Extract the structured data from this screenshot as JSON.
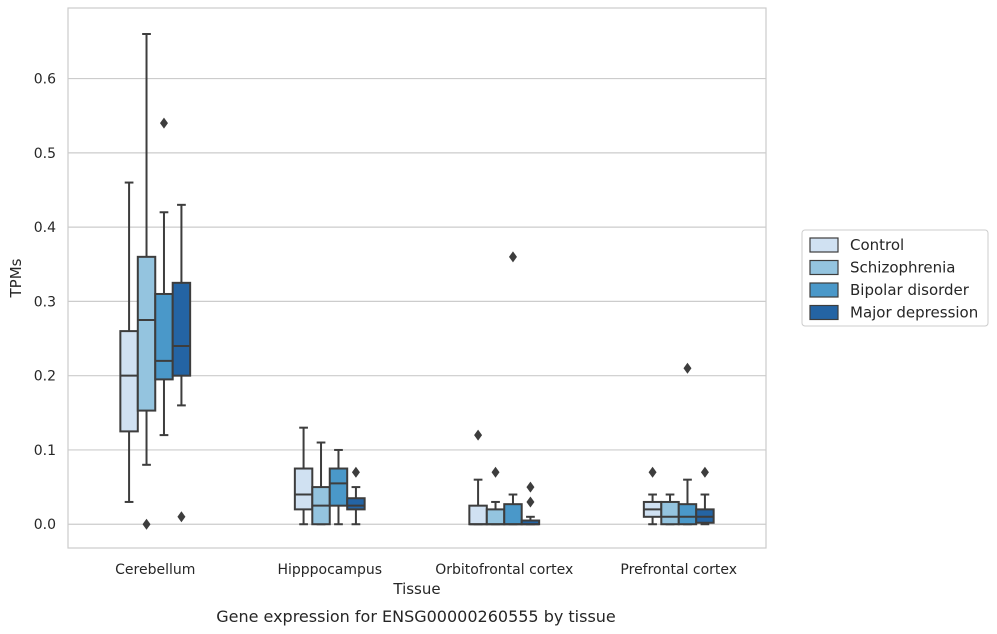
{
  "caption": "Gene expression for ENSG00000260555 by tissue",
  "chart_data": {
    "type": "box",
    "xlabel": "Tissue",
    "ylabel": "TPMs",
    "ylim": [
      -0.032,
      0.695
    ],
    "yticks": [
      0.0,
      0.1,
      0.2,
      0.3,
      0.4,
      0.5,
      0.6
    ],
    "ytick_labels": [
      "0.0",
      "0.1",
      "0.2",
      "0.3",
      "0.4",
      "0.5",
      "0.6"
    ],
    "grid": "horizontal",
    "legend_position": "right",
    "categories": [
      "Cerebellum",
      "Hipppocampus",
      "Orbitofrontal cortex",
      "Prefrontal cortex"
    ],
    "series": [
      {
        "name": "Control",
        "color": "#d0e1f2",
        "boxes": [
          {
            "whislo": 0.03,
            "q1": 0.125,
            "med": 0.2,
            "q3": 0.26,
            "whishi": 0.46,
            "fliers": []
          },
          {
            "whislo": 0.0,
            "q1": 0.02,
            "med": 0.04,
            "q3": 0.075,
            "whishi": 0.13,
            "fliers": []
          },
          {
            "whislo": 0.0,
            "q1": 0.0,
            "med": 0.0,
            "q3": 0.025,
            "whishi": 0.06,
            "fliers": [
              0.12
            ]
          },
          {
            "whislo": 0.0,
            "q1": 0.01,
            "med": 0.02,
            "q3": 0.03,
            "whishi": 0.04,
            "fliers": [
              0.07
            ]
          }
        ]
      },
      {
        "name": "Schizophrenia",
        "color": "#94c4df",
        "boxes": [
          {
            "whislo": 0.08,
            "q1": 0.153,
            "med": 0.275,
            "q3": 0.36,
            "whishi": 0.66,
            "fliers": [
              0.0
            ]
          },
          {
            "whislo": 0.0,
            "q1": 0.0,
            "med": 0.025,
            "q3": 0.05,
            "whishi": 0.11,
            "fliers": []
          },
          {
            "whislo": 0.0,
            "q1": 0.0,
            "med": 0.0,
            "q3": 0.02,
            "whishi": 0.03,
            "fliers": [
              0.07
            ]
          },
          {
            "whislo": 0.0,
            "q1": 0.0,
            "med": 0.01,
            "q3": 0.03,
            "whishi": 0.04,
            "fliers": []
          }
        ]
      },
      {
        "name": "Bipolar disorder",
        "color": "#4a98c9",
        "boxes": [
          {
            "whislo": 0.12,
            "q1": 0.195,
            "med": 0.22,
            "q3": 0.31,
            "whishi": 0.42,
            "fliers": [
              0.54
            ]
          },
          {
            "whislo": 0.0,
            "q1": 0.025,
            "med": 0.055,
            "q3": 0.075,
            "whishi": 0.1,
            "fliers": []
          },
          {
            "whislo": 0.0,
            "q1": 0.0,
            "med": 0.0,
            "q3": 0.027,
            "whishi": 0.04,
            "fliers": [
              0.36
            ]
          },
          {
            "whislo": 0.0,
            "q1": 0.0,
            "med": 0.01,
            "q3": 0.027,
            "whishi": 0.06,
            "fliers": [
              0.21
            ]
          }
        ]
      },
      {
        "name": "Major depression",
        "color": "#2464a4",
        "boxes": [
          {
            "whislo": 0.16,
            "q1": 0.2,
            "med": 0.24,
            "q3": 0.325,
            "whishi": 0.43,
            "fliers": [
              0.01
            ]
          },
          {
            "whislo": 0.0,
            "q1": 0.02,
            "med": 0.025,
            "q3": 0.035,
            "whishi": 0.05,
            "fliers": [
              0.07
            ]
          },
          {
            "whislo": 0.0,
            "q1": 0.0,
            "med": 0.0,
            "q3": 0.005,
            "whishi": 0.01,
            "fliers": [
              0.05,
              0.03
            ]
          },
          {
            "whislo": 0.0,
            "q1": 0.002,
            "med": 0.01,
            "q3": 0.02,
            "whishi": 0.04,
            "fliers": [
              0.07
            ]
          }
        ]
      }
    ]
  }
}
